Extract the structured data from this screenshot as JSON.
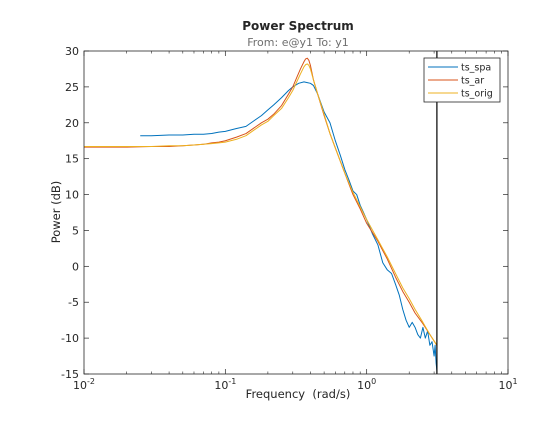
{
  "chart_data": {
    "type": "line",
    "title": "Power Spectrum",
    "subtitle": "From: e@y1  To: y1",
    "xlabel": "Frequency  (rad/s)",
    "ylabel": "Power (dB)",
    "xscale": "log",
    "xlim": [
      0.01,
      10
    ],
    "ylim": [
      -15,
      30
    ],
    "x_ticks": [
      0.01,
      0.1,
      1,
      10
    ],
    "x_tick_labels": [
      {
        "base": "10",
        "exp": "-2"
      },
      {
        "base": "10",
        "exp": "-1"
      },
      {
        "base": "10",
        "exp": "0"
      },
      {
        "base": "10",
        "exp": "1"
      }
    ],
    "y_ticks": [
      -15,
      -10,
      -5,
      0,
      5,
      10,
      15,
      20,
      25,
      30
    ],
    "y_tick_labels": [
      "-15",
      "-10",
      "-5",
      "0",
      "5",
      "10",
      "15",
      "20",
      "25",
      "30"
    ],
    "grid": false,
    "legend_position": "top-right",
    "vertical_line_x": 3.14,
    "series": [
      {
        "name": "ts_spa",
        "color": "#0072bd",
        "x": [
          0.025,
          0.03,
          0.04,
          0.05,
          0.06,
          0.07,
          0.08,
          0.09,
          0.1,
          0.12,
          0.14,
          0.16,
          0.18,
          0.2,
          0.22,
          0.25,
          0.28,
          0.3,
          0.33,
          0.36,
          0.38,
          0.4,
          0.42,
          0.45,
          0.5,
          0.55,
          0.6,
          0.65,
          0.7,
          0.75,
          0.8,
          0.85,
          0.9,
          0.95,
          1.0,
          1.1,
          1.2,
          1.3,
          1.4,
          1.5,
          1.6,
          1.7,
          1.8,
          1.9,
          2.0,
          2.1,
          2.2,
          2.3,
          2.4,
          2.5,
          2.6,
          2.7,
          2.8,
          2.9,
          3.0,
          3.05,
          3.1,
          3.14
        ],
        "y": [
          18.2,
          18.2,
          18.3,
          18.3,
          18.4,
          18.4,
          18.5,
          18.7,
          18.8,
          19.2,
          19.5,
          20.3,
          21.0,
          21.8,
          22.5,
          23.5,
          24.5,
          25.0,
          25.5,
          25.7,
          25.6,
          25.5,
          25.2,
          24.0,
          21.5,
          20.0,
          17.5,
          15.5,
          13.5,
          12.0,
          10.5,
          10.0,
          8.5,
          7.5,
          6.5,
          4.5,
          3.0,
          0.5,
          -0.5,
          -1.0,
          -2.5,
          -4.0,
          -6.0,
          -7.5,
          -8.5,
          -7.8,
          -8.5,
          -9.5,
          -10.0,
          -8.5,
          -10.0,
          -9.0,
          -11.0,
          -10.5,
          -12.5,
          -11.0,
          -13.5,
          -14.5
        ]
      },
      {
        "name": "ts_ar",
        "color": "#d95319",
        "x": [
          0.01,
          0.02,
          0.03,
          0.04,
          0.05,
          0.06,
          0.07,
          0.08,
          0.09,
          0.1,
          0.12,
          0.14,
          0.16,
          0.18,
          0.2,
          0.22,
          0.25,
          0.28,
          0.3,
          0.32,
          0.34,
          0.36,
          0.37,
          0.38,
          0.39,
          0.4,
          0.42,
          0.45,
          0.5,
          0.55,
          0.6,
          0.7,
          0.8,
          0.9,
          1.0,
          1.2,
          1.4,
          1.6,
          1.8,
          2.0,
          2.2,
          2.5,
          2.8,
          3.14
        ],
        "y": [
          16.6,
          16.6,
          16.7,
          16.7,
          16.8,
          16.9,
          17.0,
          17.2,
          17.3,
          17.5,
          18.0,
          18.5,
          19.3,
          20.0,
          20.5,
          21.2,
          22.4,
          24.0,
          25.0,
          26.3,
          27.5,
          28.5,
          28.9,
          29.0,
          28.7,
          28.0,
          26.0,
          24.0,
          21.0,
          18.5,
          16.5,
          13.0,
          10.0,
          8.0,
          6.0,
          3.5,
          1.0,
          -1.5,
          -3.5,
          -5.0,
          -6.5,
          -8.0,
          -9.5,
          -11.0
        ]
      },
      {
        "name": "ts_orig",
        "color": "#edb120",
        "x": [
          0.01,
          0.02,
          0.03,
          0.04,
          0.05,
          0.06,
          0.07,
          0.08,
          0.09,
          0.1,
          0.12,
          0.14,
          0.16,
          0.18,
          0.2,
          0.22,
          0.25,
          0.28,
          0.3,
          0.32,
          0.34,
          0.36,
          0.37,
          0.38,
          0.39,
          0.4,
          0.42,
          0.45,
          0.5,
          0.55,
          0.6,
          0.7,
          0.8,
          0.9,
          1.0,
          1.2,
          1.4,
          1.6,
          1.8,
          2.0,
          2.2,
          2.5,
          2.8,
          3.14
        ],
        "y": [
          16.7,
          16.7,
          16.7,
          16.8,
          16.8,
          16.9,
          17.0,
          17.1,
          17.2,
          17.3,
          17.7,
          18.2,
          19.0,
          19.7,
          20.2,
          21.0,
          22.0,
          23.5,
          24.5,
          25.7,
          26.8,
          27.8,
          28.1,
          28.2,
          28.0,
          27.5,
          26.0,
          24.0,
          21.2,
          18.5,
          16.5,
          13.0,
          10.3,
          8.3,
          6.5,
          3.7,
          1.3,
          -1.0,
          -3.0,
          -4.5,
          -6.0,
          -7.8,
          -9.5,
          -11.0
        ]
      }
    ]
  }
}
